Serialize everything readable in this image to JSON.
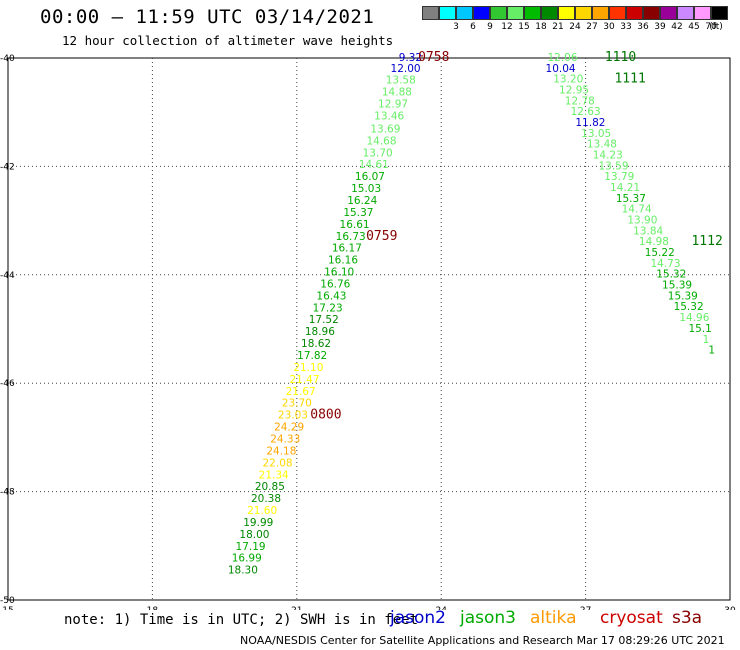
{
  "header": {
    "title": "00:00 – 11:59 UTC 03/14/2021",
    "subtitle": "12 hour collection of altimeter wave heights"
  },
  "colorbar": {
    "unit_label": "(ft)",
    "swatches": [
      {
        "label": "",
        "color": "#808080"
      },
      {
        "label": "3",
        "color": "#00ffff"
      },
      {
        "label": "6",
        "color": "#00c8ff"
      },
      {
        "label": "9",
        "color": "#0000ff"
      },
      {
        "label": "12",
        "color": "#32c832"
      },
      {
        "label": "15",
        "color": "#66ee66"
      },
      {
        "label": "18",
        "color": "#00bb00"
      },
      {
        "label": "21",
        "color": "#008800"
      },
      {
        "label": "24",
        "color": "#ffff00"
      },
      {
        "label": "27",
        "color": "#ffd700"
      },
      {
        "label": "30",
        "color": "#ffa500"
      },
      {
        "label": "33",
        "color": "#ff3300"
      },
      {
        "label": "36",
        "color": "#cc0000"
      },
      {
        "label": "39",
        "color": "#880000"
      },
      {
        "label": "42",
        "color": "#990099"
      },
      {
        "label": "45",
        "color": "#cc88ff"
      },
      {
        "label": "70",
        "color": "#ff99ff"
      },
      {
        "label": "",
        "color": "#000000"
      }
    ]
  },
  "chart_data": {
    "type": "scatter",
    "x_axis": {
      "ticks": [
        15,
        18,
        21,
        24,
        27,
        30
      ],
      "range": [
        15,
        30
      ]
    },
    "y_axis": {
      "ticks": [
        -40,
        -42,
        -44,
        -46,
        -48,
        -50
      ],
      "range": [
        -50,
        -40
      ]
    },
    "points": [
      {
        "lon": 23.36,
        "lat": -39.98,
        "v": "9.32",
        "c": "#0000cc"
      },
      {
        "lon": 23.26,
        "lat": -40.18,
        "v": "12.00",
        "c": "#0000cc"
      },
      {
        "lon": 23.16,
        "lat": -40.4,
        "v": "13.58",
        "c": "#66ee66"
      },
      {
        "lon": 23.08,
        "lat": -40.62,
        "v": "14.88",
        "c": "#66ee66"
      },
      {
        "lon": 23.0,
        "lat": -40.84,
        "v": "12.97",
        "c": "#66ee66"
      },
      {
        "lon": 22.92,
        "lat": -41.06,
        "v": "13.46",
        "c": "#66ee66"
      },
      {
        "lon": 22.84,
        "lat": -41.3,
        "v": "13.69",
        "c": "#66ee66"
      },
      {
        "lon": 22.76,
        "lat": -41.52,
        "v": "14.68",
        "c": "#66ee66"
      },
      {
        "lon": 22.68,
        "lat": -41.74,
        "v": "13.70",
        "c": "#66ee66"
      },
      {
        "lon": 22.6,
        "lat": -41.96,
        "v": "14.61",
        "c": "#66ee66"
      },
      {
        "lon": 22.52,
        "lat": -42.18,
        "v": "16.07",
        "c": "#00aa00"
      },
      {
        "lon": 22.44,
        "lat": -42.4,
        "v": "15.03",
        "c": "#00aa00"
      },
      {
        "lon": 22.36,
        "lat": -42.62,
        "v": "16.24",
        "c": "#00aa00"
      },
      {
        "lon": 22.28,
        "lat": -42.84,
        "v": "15.37",
        "c": "#00aa00"
      },
      {
        "lon": 22.2,
        "lat": -43.06,
        "v": "16.61",
        "c": "#00aa00"
      },
      {
        "lon": 22.12,
        "lat": -43.28,
        "v": "16.73",
        "c": "#00aa00"
      },
      {
        "lon": 22.04,
        "lat": -43.5,
        "v": "16.17",
        "c": "#00aa00"
      },
      {
        "lon": 21.96,
        "lat": -43.72,
        "v": "16.16",
        "c": "#00aa00"
      },
      {
        "lon": 21.88,
        "lat": -43.94,
        "v": "16.10",
        "c": "#00aa00"
      },
      {
        "lon": 21.8,
        "lat": -44.16,
        "v": "16.76",
        "c": "#00aa00"
      },
      {
        "lon": 21.72,
        "lat": -44.38,
        "v": "16.43",
        "c": "#00aa00"
      },
      {
        "lon": 21.64,
        "lat": -44.6,
        "v": "17.23",
        "c": "#00aa00"
      },
      {
        "lon": 21.56,
        "lat": -44.82,
        "v": "17.52",
        "c": "#008800"
      },
      {
        "lon": 21.48,
        "lat": -45.04,
        "v": "18.96",
        "c": "#008800"
      },
      {
        "lon": 21.4,
        "lat": -45.26,
        "v": "18.62",
        "c": "#008800"
      },
      {
        "lon": 21.32,
        "lat": -45.48,
        "v": "17.82",
        "c": "#00aa00"
      },
      {
        "lon": 21.24,
        "lat": -45.7,
        "v": "21.10",
        "c": "#ffff00"
      },
      {
        "lon": 21.16,
        "lat": -45.92,
        "v": "21.47",
        "c": "#ffff00"
      },
      {
        "lon": 21.08,
        "lat": -46.14,
        "v": "21.67",
        "c": "#ffff00"
      },
      {
        "lon": 21.0,
        "lat": -46.36,
        "v": "23.70",
        "c": "#ffd700"
      },
      {
        "lon": 20.92,
        "lat": -46.58,
        "v": "23.03",
        "c": "#ffd700"
      },
      {
        "lon": 20.84,
        "lat": -46.8,
        "v": "24.29",
        "c": "#ffa500"
      },
      {
        "lon": 20.76,
        "lat": -47.02,
        "v": "24.33",
        "c": "#ffa500"
      },
      {
        "lon": 20.68,
        "lat": -47.24,
        "v": "24.18",
        "c": "#ffa500"
      },
      {
        "lon": 20.6,
        "lat": -47.46,
        "v": "22.08",
        "c": "#ffd700"
      },
      {
        "lon": 20.52,
        "lat": -47.68,
        "v": "21.34",
        "c": "#ffff00"
      },
      {
        "lon": 20.44,
        "lat": -47.9,
        "v": "20.85",
        "c": "#008800"
      },
      {
        "lon": 20.36,
        "lat": -48.12,
        "v": "20.38",
        "c": "#008800"
      },
      {
        "lon": 20.28,
        "lat": -48.34,
        "v": "21.60",
        "c": "#ffff00"
      },
      {
        "lon": 20.2,
        "lat": -48.56,
        "v": "19.99",
        "c": "#008800"
      },
      {
        "lon": 20.12,
        "lat": -48.78,
        "v": "18.00",
        "c": "#008800"
      },
      {
        "lon": 20.04,
        "lat": -49.0,
        "v": "17.19",
        "c": "#00aa00"
      },
      {
        "lon": 19.96,
        "lat": -49.22,
        "v": "16.99",
        "c": "#00aa00"
      },
      {
        "lon": 19.88,
        "lat": -49.44,
        "v": "18.30",
        "c": "#008800"
      },
      {
        "lon": 26.52,
        "lat": -39.98,
        "v": "12.06",
        "c": "#66ee66"
      },
      {
        "lon": 26.48,
        "lat": -40.18,
        "v": "10.04",
        "c": "#0000cc"
      },
      {
        "lon": 26.64,
        "lat": -40.38,
        "v": "13.20",
        "c": "#66ee66"
      },
      {
        "lon": 26.76,
        "lat": -40.58,
        "v": "12.95",
        "c": "#66ee66"
      },
      {
        "lon": 26.88,
        "lat": -40.78,
        "v": "12.78",
        "c": "#66ee66"
      },
      {
        "lon": 27.0,
        "lat": -40.98,
        "v": "12.63",
        "c": "#66ee66"
      },
      {
        "lon": 27.1,
        "lat": -41.18,
        "v": "11.82",
        "c": "#0000cc"
      },
      {
        "lon": 27.22,
        "lat": -41.38,
        "v": "13.05",
        "c": "#66ee66"
      },
      {
        "lon": 27.34,
        "lat": -41.58,
        "v": "13.48",
        "c": "#66ee66"
      },
      {
        "lon": 27.46,
        "lat": -41.78,
        "v": "14.23",
        "c": "#66ee66"
      },
      {
        "lon": 27.58,
        "lat": -41.98,
        "v": "13.59",
        "c": "#66ee66"
      },
      {
        "lon": 27.7,
        "lat": -42.18,
        "v": "13.79",
        "c": "#66ee66"
      },
      {
        "lon": 27.82,
        "lat": -42.38,
        "v": "14.21",
        "c": "#66ee66"
      },
      {
        "lon": 27.94,
        "lat": -42.58,
        "v": "15.37",
        "c": "#00aa00"
      },
      {
        "lon": 28.06,
        "lat": -42.78,
        "v": "14.74",
        "c": "#66ee66"
      },
      {
        "lon": 28.18,
        "lat": -42.98,
        "v": "13.90",
        "c": "#66ee66"
      },
      {
        "lon": 28.3,
        "lat": -43.18,
        "v": "13.84",
        "c": "#66ee66"
      },
      {
        "lon": 28.42,
        "lat": -43.38,
        "v": "14.98",
        "c": "#66ee66"
      },
      {
        "lon": 28.54,
        "lat": -43.58,
        "v": "15.22",
        "c": "#00aa00"
      },
      {
        "lon": 28.66,
        "lat": -43.78,
        "v": "14.73",
        "c": "#66ee66"
      },
      {
        "lon": 28.78,
        "lat": -43.98,
        "v": "15.32",
        "c": "#00aa00"
      },
      {
        "lon": 28.9,
        "lat": -44.18,
        "v": "15.39",
        "c": "#00aa00"
      },
      {
        "lon": 29.02,
        "lat": -44.38,
        "v": "15.39",
        "c": "#00aa00"
      },
      {
        "lon": 29.14,
        "lat": -44.58,
        "v": "15.32",
        "c": "#00aa00"
      },
      {
        "lon": 29.26,
        "lat": -44.78,
        "v": "14.96",
        "c": "#66ee66"
      },
      {
        "lon": 29.38,
        "lat": -44.98,
        "v": "15.1",
        "c": "#00aa00"
      },
      {
        "lon": 29.5,
        "lat": -45.18,
        "v": "1",
        "c": "#66ee66"
      },
      {
        "lon": 29.62,
        "lat": -45.38,
        "v": "1",
        "c": "#00aa00"
      }
    ],
    "time_labels": [
      {
        "lon": 23.52,
        "lat": -39.98,
        "t": "0758",
        "c": "#880000"
      },
      {
        "lon": 22.44,
        "lat": -43.28,
        "t": "0759",
        "c": "#880000"
      },
      {
        "lon": 21.28,
        "lat": -46.58,
        "t": "0800",
        "c": "#880000"
      },
      {
        "lon": 27.4,
        "lat": -39.98,
        "t": "1110",
        "c": "#007700"
      },
      {
        "lon": 27.6,
        "lat": -40.38,
        "t": "1111",
        "c": "#007700"
      },
      {
        "lon": 29.2,
        "lat": -43.38,
        "t": "1112",
        "c": "#007700"
      }
    ]
  },
  "footer": {
    "note": "note: 1) Time is in UTC; 2) SWH is in feet",
    "satellites": [
      {
        "name": "jason2",
        "color": "#0000cc"
      },
      {
        "name": "jason3",
        "color": "#00aa00"
      },
      {
        "name": "altika",
        "color": "#ff9900"
      },
      {
        "name": "cryosat",
        "color": "#cc0000"
      },
      {
        "name": "s3a",
        "color": "#880000"
      }
    ],
    "credit": "NOAA/NESDIS Center for Satellite Applications and Research   Mar 17 08:29:26 UTC 2021"
  }
}
